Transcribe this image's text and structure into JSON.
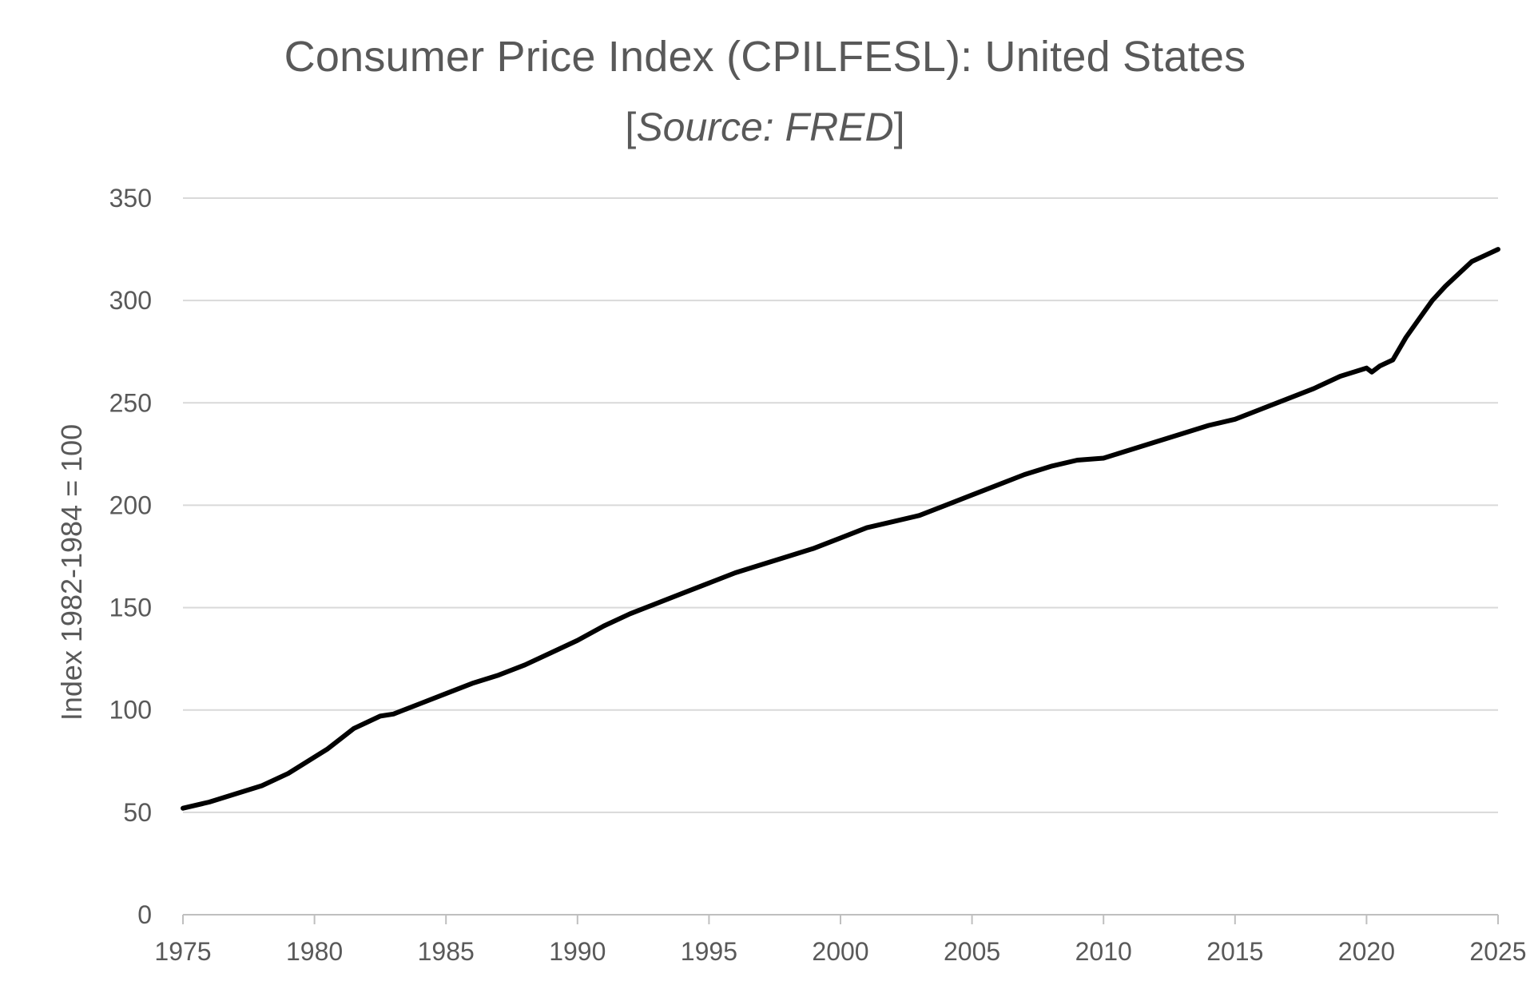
{
  "chart_data": {
    "type": "line",
    "title": "Consumer Price Index (CPILFESL): United States",
    "subtitle_open": "[",
    "subtitle_source": "Source: FRED",
    "subtitle_close": "]",
    "xlabel": "",
    "ylabel": "Index 1982-1984 = 100",
    "xlim": [
      1975,
      2025
    ],
    "ylim": [
      0,
      350
    ],
    "x_ticks": [
      "1975",
      "1980",
      "1985",
      "1990",
      "1995",
      "2000",
      "2005",
      "2010",
      "2015",
      "2020",
      "2025"
    ],
    "y_ticks": [
      "0",
      "50",
      "100",
      "150",
      "200",
      "250",
      "300",
      "350"
    ],
    "grid": true,
    "legend": "none",
    "line_color": "#000000",
    "grid_color": "#d9d9d9",
    "series": [
      {
        "x": [
          1975,
          1976,
          1977,
          1978,
          1979,
          1980,
          1980.5,
          1981,
          1981.5,
          1982,
          1982.5,
          1983,
          1984,
          1985,
          1986,
          1987,
          1988,
          1989,
          1990,
          1991,
          1992,
          1993,
          1994,
          1995,
          1996,
          1997,
          1998,
          1999,
          2000,
          2001,
          2002,
          2003,
          2004,
          2005,
          2006,
          2007,
          2008,
          2009,
          2010,
          2011,
          2012,
          2013,
          2014,
          2015,
          2016,
          2017,
          2018,
          2019,
          2020,
          2020.2,
          2020.5,
          2021,
          2021.5,
          2022,
          2022.5,
          2023,
          2023.5,
          2024,
          2024.5,
          2025
        ],
        "y": [
          52,
          55,
          59,
          63,
          69,
          77,
          81,
          86,
          91,
          94,
          97,
          98,
          103,
          108,
          113,
          117,
          122,
          128,
          134,
          141,
          147,
          152,
          157,
          162,
          167,
          171,
          175,
          179,
          184,
          189,
          192,
          195,
          200,
          205,
          210,
          215,
          219,
          222,
          223,
          227,
          231,
          235,
          239,
          242,
          247,
          252,
          257,
          263,
          267,
          265,
          268,
          271,
          282,
          291,
          300,
          307,
          313,
          319,
          322,
          325
        ]
      }
    ]
  }
}
